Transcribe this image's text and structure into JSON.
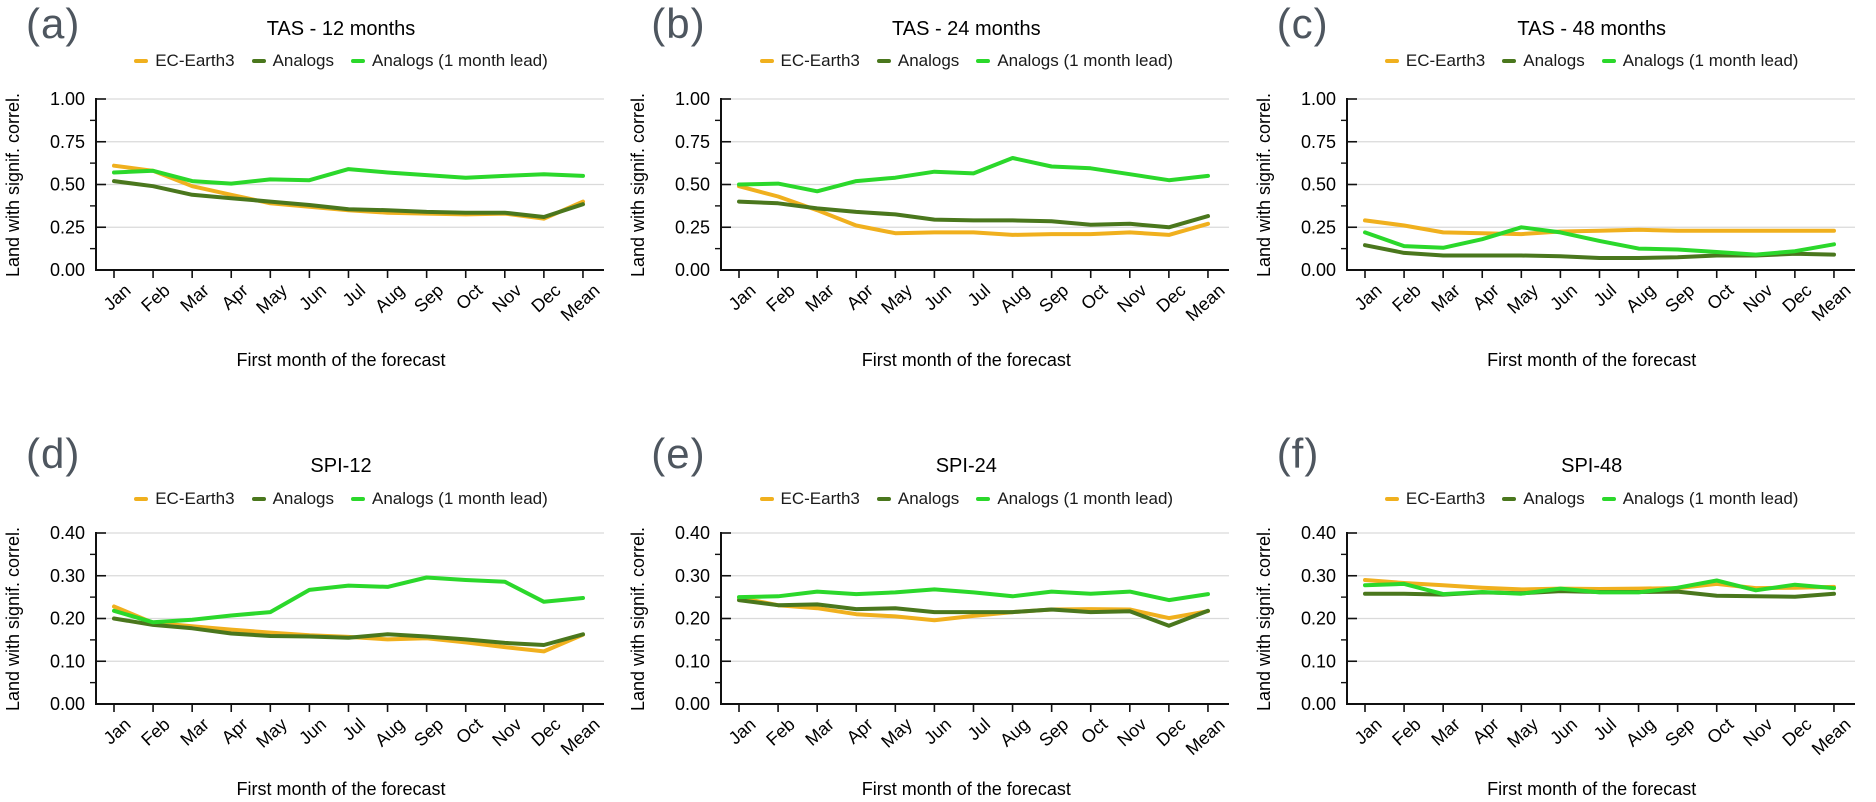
{
  "figure": {
    "xlabel": "First month of the forecast",
    "ylabel": "Land with signif. correl."
  },
  "legend": {
    "items": [
      "EC-Earth3",
      "Analogs",
      "Analogs (1 month lead)"
    ]
  },
  "colors": {
    "ec_earth3": "#F0B01E",
    "analogs": "#4A771D",
    "analogs_lead": "#2BD82B",
    "panel_label": "#4E565F",
    "grid": "#DADADA",
    "axis": "#111111"
  },
  "chart_data": [
    {
      "type": "line",
      "panel_label": "(a)",
      "title": "TAS - 12 months",
      "xlabel": "First month of the forecast",
      "ylabel": "Land with signif. correl.",
      "categories": [
        "Jan",
        "Feb",
        "Mar",
        "Apr",
        "May",
        "Jun",
        "Jul",
        "Aug",
        "Sep",
        "Oct",
        "Nov",
        "Dec",
        "Mean"
      ],
      "ylim": [
        0,
        1.0
      ],
      "yticks": [
        0,
        0.25,
        0.5,
        0.75,
        1.0
      ],
      "ytick_labels": [
        "0.00",
        "0.25",
        "0.50",
        "0.75",
        "1.00"
      ],
      "grid": true,
      "legend_position": "top",
      "series": [
        {
          "name": "EC-Earth3",
          "values": [
            0.61,
            0.58,
            0.49,
            0.44,
            0.39,
            0.37,
            0.35,
            0.335,
            0.33,
            0.325,
            0.33,
            0.3,
            0.4
          ]
        },
        {
          "name": "Analogs",
          "values": [
            0.52,
            0.49,
            0.44,
            0.42,
            0.4,
            0.38,
            0.355,
            0.35,
            0.34,
            0.335,
            0.335,
            0.31,
            0.385
          ]
        },
        {
          "name": "Analogs (1 month lead)",
          "values": [
            0.57,
            0.58,
            0.52,
            0.505,
            0.53,
            0.525,
            0.59,
            0.57,
            0.555,
            0.54,
            0.55,
            0.56,
            0.55
          ]
        }
      ]
    },
    {
      "type": "line",
      "panel_label": "(b)",
      "title": "TAS - 24 months",
      "xlabel": "First month of the forecast",
      "ylabel": "Land with signif. correl.",
      "categories": [
        "Jan",
        "Feb",
        "Mar",
        "Apr",
        "May",
        "Jun",
        "Jul",
        "Aug",
        "Sep",
        "Oct",
        "Nov",
        "Dec",
        "Mean"
      ],
      "ylim": [
        0,
        1.0
      ],
      "yticks": [
        0,
        0.25,
        0.5,
        0.75,
        1.0
      ],
      "ytick_labels": [
        "0.00",
        "0.25",
        "0.50",
        "0.75",
        "1.00"
      ],
      "grid": true,
      "legend_position": "top",
      "series": [
        {
          "name": "EC-Earth3",
          "values": [
            0.49,
            0.43,
            0.35,
            0.26,
            0.215,
            0.22,
            0.22,
            0.205,
            0.21,
            0.21,
            0.22,
            0.205,
            0.27
          ]
        },
        {
          "name": "Analogs",
          "values": [
            0.4,
            0.39,
            0.36,
            0.34,
            0.325,
            0.295,
            0.29,
            0.29,
            0.285,
            0.265,
            0.27,
            0.25,
            0.315
          ]
        },
        {
          "name": "Analogs (1 month lead)",
          "values": [
            0.5,
            0.505,
            0.46,
            0.52,
            0.54,
            0.575,
            0.565,
            0.655,
            0.605,
            0.595,
            0.56,
            0.525,
            0.55
          ]
        }
      ]
    },
    {
      "type": "line",
      "panel_label": "(c)",
      "title": "TAS - 48 months",
      "xlabel": "First month of the forecast",
      "ylabel": "Land with signif. correl.",
      "categories": [
        "Jan",
        "Feb",
        "Mar",
        "Apr",
        "May",
        "Jun",
        "Jul",
        "Aug",
        "Sep",
        "Oct",
        "Nov",
        "Dec",
        "Mean"
      ],
      "ylim": [
        0,
        1.0
      ],
      "yticks": [
        0,
        0.25,
        0.5,
        0.75,
        1.0
      ],
      "ytick_labels": [
        "0.00",
        "0.25",
        "0.50",
        "0.75",
        "1.00"
      ],
      "grid": true,
      "legend_position": "top",
      "series": [
        {
          "name": "EC-Earth3",
          "values": [
            0.29,
            0.26,
            0.22,
            0.215,
            0.21,
            0.225,
            0.23,
            0.235,
            0.23,
            0.23,
            0.23,
            0.23,
            0.23
          ]
        },
        {
          "name": "Analogs",
          "values": [
            0.145,
            0.1,
            0.085,
            0.085,
            0.085,
            0.08,
            0.07,
            0.07,
            0.075,
            0.085,
            0.085,
            0.095,
            0.09
          ]
        },
        {
          "name": "Analogs (1 month lead)",
          "values": [
            0.22,
            0.14,
            0.13,
            0.18,
            0.25,
            0.22,
            0.17,
            0.125,
            0.12,
            0.105,
            0.09,
            0.11,
            0.15
          ]
        }
      ]
    },
    {
      "type": "line",
      "panel_label": "(d)",
      "title": "SPI-12",
      "xlabel": "First month of the forecast",
      "ylabel": "Land with signif. correl.",
      "categories": [
        "Jan",
        "Feb",
        "Mar",
        "Apr",
        "May",
        "Jun",
        "Jul",
        "Aug",
        "Sep",
        "Oct",
        "Nov",
        "Dec",
        "Mean"
      ],
      "ylim": [
        0,
        0.4
      ],
      "yticks": [
        0,
        0.1,
        0.2,
        0.3,
        0.4
      ],
      "ytick_labels": [
        "0.00",
        "0.10",
        "0.20",
        "0.30",
        "0.40"
      ],
      "grid": true,
      "legend_position": "top",
      "series": [
        {
          "name": "EC-Earth3",
          "values": [
            0.228,
            0.19,
            0.182,
            0.174,
            0.167,
            0.161,
            0.157,
            0.151,
            0.154,
            0.144,
            0.133,
            0.123,
            0.162
          ]
        },
        {
          "name": "Analogs",
          "values": [
            0.2,
            0.185,
            0.177,
            0.165,
            0.159,
            0.158,
            0.155,
            0.163,
            0.158,
            0.151,
            0.143,
            0.138,
            0.163
          ]
        },
        {
          "name": "Analogs (1 month lead)",
          "values": [
            0.218,
            0.191,
            0.197,
            0.207,
            0.215,
            0.267,
            0.277,
            0.274,
            0.296,
            0.29,
            0.286,
            0.239,
            0.248
          ]
        }
      ]
    },
    {
      "type": "line",
      "panel_label": "(e)",
      "title": "SPI-24",
      "xlabel": "First month of the forecast",
      "ylabel": "Land with signif. correl.",
      "categories": [
        "Jan",
        "Feb",
        "Mar",
        "Apr",
        "May",
        "Jun",
        "Jul",
        "Aug",
        "Sep",
        "Oct",
        "Nov",
        "Dec",
        "Mean"
      ],
      "ylim": [
        0,
        0.4
      ],
      "yticks": [
        0,
        0.1,
        0.2,
        0.3,
        0.4
      ],
      "ytick_labels": [
        "0.00",
        "0.10",
        "0.20",
        "0.30",
        "0.40"
      ],
      "grid": true,
      "legend_position": "top",
      "series": [
        {
          "name": "EC-Earth3",
          "values": [
            0.249,
            0.231,
            0.224,
            0.21,
            0.205,
            0.196,
            0.206,
            0.215,
            0.221,
            0.222,
            0.221,
            0.201,
            0.217
          ]
        },
        {
          "name": "Analogs",
          "values": [
            0.243,
            0.231,
            0.233,
            0.222,
            0.224,
            0.215,
            0.215,
            0.215,
            0.221,
            0.215,
            0.217,
            0.183,
            0.218
          ]
        },
        {
          "name": "Analogs (1 month lead)",
          "values": [
            0.25,
            0.252,
            0.263,
            0.257,
            0.261,
            0.268,
            0.261,
            0.252,
            0.263,
            0.258,
            0.263,
            0.243,
            0.257
          ]
        }
      ]
    },
    {
      "type": "line",
      "panel_label": "(f)",
      "title": "SPI-48",
      "xlabel": "First month of the forecast",
      "ylabel": "Land with signif. correl.",
      "categories": [
        "Jan",
        "Feb",
        "Mar",
        "Apr",
        "May",
        "Jun",
        "Jul",
        "Aug",
        "Sep",
        "Oct",
        "Nov",
        "Dec",
        "Mean"
      ],
      "ylim": [
        0,
        0.4
      ],
      "yticks": [
        0,
        0.1,
        0.2,
        0.3,
        0.4
      ],
      "ytick_labels": [
        "0.00",
        "0.10",
        "0.20",
        "0.30",
        "0.40"
      ],
      "grid": true,
      "legend_position": "top",
      "series": [
        {
          "name": "EC-Earth3",
          "values": [
            0.29,
            0.283,
            0.278,
            0.272,
            0.268,
            0.27,
            0.269,
            0.27,
            0.271,
            0.281,
            0.271,
            0.272,
            0.274
          ]
        },
        {
          "name": "Analogs",
          "values": [
            0.258,
            0.258,
            0.256,
            0.261,
            0.259,
            0.264,
            0.262,
            0.262,
            0.263,
            0.253,
            0.252,
            0.251,
            0.258
          ]
        },
        {
          "name": "Analogs (1 month lead)",
          "values": [
            0.278,
            0.281,
            0.257,
            0.262,
            0.258,
            0.27,
            0.261,
            0.261,
            0.272,
            0.289,
            0.266,
            0.279,
            0.271
          ]
        }
      ]
    }
  ]
}
